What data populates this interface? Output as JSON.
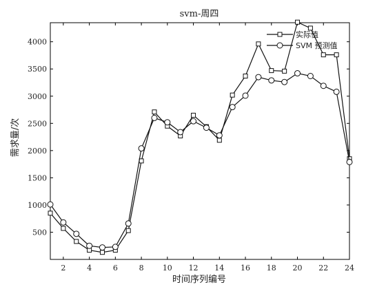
{
  "chart_data": {
    "type": "line",
    "title": "svm-周四",
    "xlabel": "时间序列编号",
    "ylabel": "需求量/次",
    "xlim": [
      1,
      24
    ],
    "ylim": [
      0,
      4350
    ],
    "x": [
      1,
      2,
      3,
      4,
      5,
      6,
      7,
      8,
      9,
      10,
      11,
      12,
      13,
      14,
      15,
      16,
      17,
      18,
      19,
      20,
      21,
      22,
      23,
      24
    ],
    "xticks": [
      2,
      4,
      6,
      8,
      10,
      12,
      14,
      16,
      18,
      20,
      22,
      24
    ],
    "yticks": [
      500,
      1000,
      1500,
      2000,
      2500,
      3000,
      3500,
      4000
    ],
    "grid": false,
    "legend": "top-right",
    "series": [
      {
        "name": "实际值",
        "marker": "square",
        "values": [
          850,
          570,
          330,
          170,
          130,
          170,
          530,
          1810,
          2710,
          2450,
          2270,
          2650,
          2440,
          2190,
          3020,
          3370,
          3960,
          3470,
          3460,
          4360,
          4250,
          3760,
          3760,
          1850
        ]
      },
      {
        "name": "SVM 预测值",
        "marker": "circle",
        "values": [
          1010,
          680,
          470,
          250,
          220,
          230,
          660,
          2040,
          2600,
          2520,
          2340,
          2540,
          2420,
          2280,
          2800,
          3010,
          3350,
          3290,
          3260,
          3420,
          3370,
          3190,
          3080,
          1790
        ]
      }
    ]
  }
}
